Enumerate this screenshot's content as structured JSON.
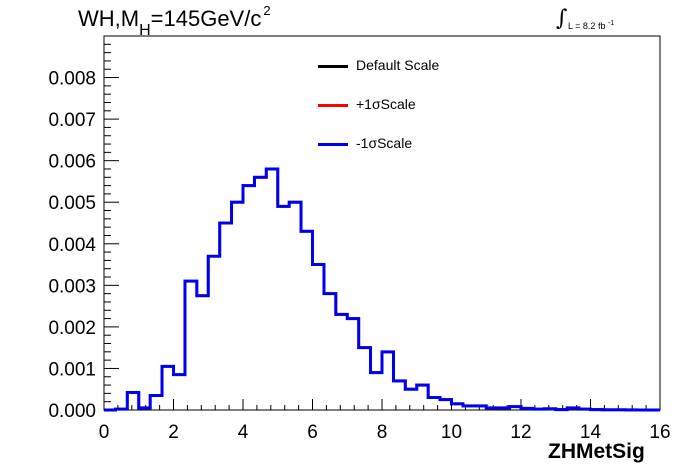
{
  "title": {
    "main": "WH,M",
    "sub": "H",
    "rest": "=145GeV/c",
    "sup": "2"
  },
  "lumi": {
    "integral": "∫",
    "text": "L = 8.2 fb",
    "sup": "-1"
  },
  "chart_data": {
    "type": "line",
    "xlabel": "ZHMetSig",
    "ylabel": "",
    "xlim": [
      0,
      16
    ],
    "ylim": [
      0,
      0.009
    ],
    "x_ticks": [
      "0",
      "2",
      "4",
      "6",
      "8",
      "10",
      "12",
      "14",
      "16"
    ],
    "y_ticks": [
      "0.000",
      "0.001",
      "0.002",
      "0.003",
      "0.004",
      "0.005",
      "0.006",
      "0.007",
      "0.008"
    ],
    "x_tick_values": [
      0,
      2,
      4,
      6,
      8,
      10,
      12,
      14,
      16
    ],
    "y_tick_values": [
      0,
      0.001,
      0.002,
      0.003,
      0.004,
      0.005,
      0.006,
      0.007,
      0.008
    ],
    "legend_position": "top-center",
    "bin_edges": [
      0,
      0.33,
      0.67,
      1,
      1.33,
      1.67,
      2,
      2.33,
      2.67,
      3,
      3.33,
      3.67,
      4,
      4.33,
      4.67,
      5,
      5.33,
      5.67,
      6,
      6.33,
      6.67,
      7,
      7.33,
      7.67,
      8,
      8.33,
      8.67,
      9,
      9.33,
      9.67,
      10,
      10.33,
      10.67,
      11,
      11.33,
      11.67,
      12,
      12.33,
      12.67,
      13,
      13.33,
      13.67,
      14,
      14.33,
      14.67,
      15,
      15.33,
      15.67,
      16
    ],
    "series": [
      {
        "name": "Default Scale",
        "color": "#000000",
        "values": [
          0,
          2e-05,
          0.00042,
          5e-05,
          0.00035,
          0.00105,
          0.00085,
          0.0031,
          0.00275,
          0.0037,
          0.0045,
          0.005,
          0.0054,
          0.0056,
          0.0058,
          0.0049,
          0.005,
          0.0043,
          0.0035,
          0.0028,
          0.0023,
          0.0022,
          0.0015,
          0.0009,
          0.0014,
          0.0007,
          0.0005,
          0.0006,
          0.0003,
          0.00025,
          0.00015,
          0.0001,
          0.0001,
          5e-05,
          5e-05,
          8e-05,
          4e-05,
          2e-05,
          3e-05,
          1e-05,
          5e-05,
          2e-05,
          1e-05,
          5e-06,
          5e-06,
          2e-06,
          1e-06,
          0
        ]
      },
      {
        "name": "+1σScale",
        "color": "#ff0000",
        "values": [
          0,
          2e-05,
          0.00042,
          5e-05,
          0.00035,
          0.00105,
          0.00085,
          0.0031,
          0.00275,
          0.0037,
          0.0045,
          0.005,
          0.0054,
          0.0056,
          0.0058,
          0.0049,
          0.005,
          0.0043,
          0.0035,
          0.0028,
          0.0023,
          0.0022,
          0.0015,
          0.0009,
          0.0014,
          0.0007,
          0.0005,
          0.0006,
          0.0003,
          0.00025,
          0.00015,
          0.0001,
          0.0001,
          5e-05,
          5e-05,
          8e-05,
          4e-05,
          2e-05,
          3e-05,
          1e-05,
          5e-05,
          2e-05,
          1e-05,
          5e-06,
          5e-06,
          2e-06,
          1e-06,
          0
        ]
      },
      {
        "name": "-1σScale",
        "color": "#0000ee",
        "values": [
          0,
          2e-05,
          0.00042,
          5e-05,
          0.00035,
          0.00105,
          0.00085,
          0.0031,
          0.00275,
          0.0037,
          0.0045,
          0.005,
          0.0054,
          0.0056,
          0.0058,
          0.0049,
          0.005,
          0.0043,
          0.0035,
          0.0028,
          0.0023,
          0.0022,
          0.0015,
          0.0009,
          0.0014,
          0.0007,
          0.0005,
          0.0006,
          0.0003,
          0.00025,
          0.00015,
          0.0001,
          0.0001,
          5e-05,
          5e-05,
          8e-05,
          4e-05,
          2e-05,
          3e-05,
          1e-05,
          5e-05,
          2e-05,
          1e-05,
          5e-06,
          5e-06,
          2e-06,
          1e-06,
          0
        ]
      }
    ]
  }
}
